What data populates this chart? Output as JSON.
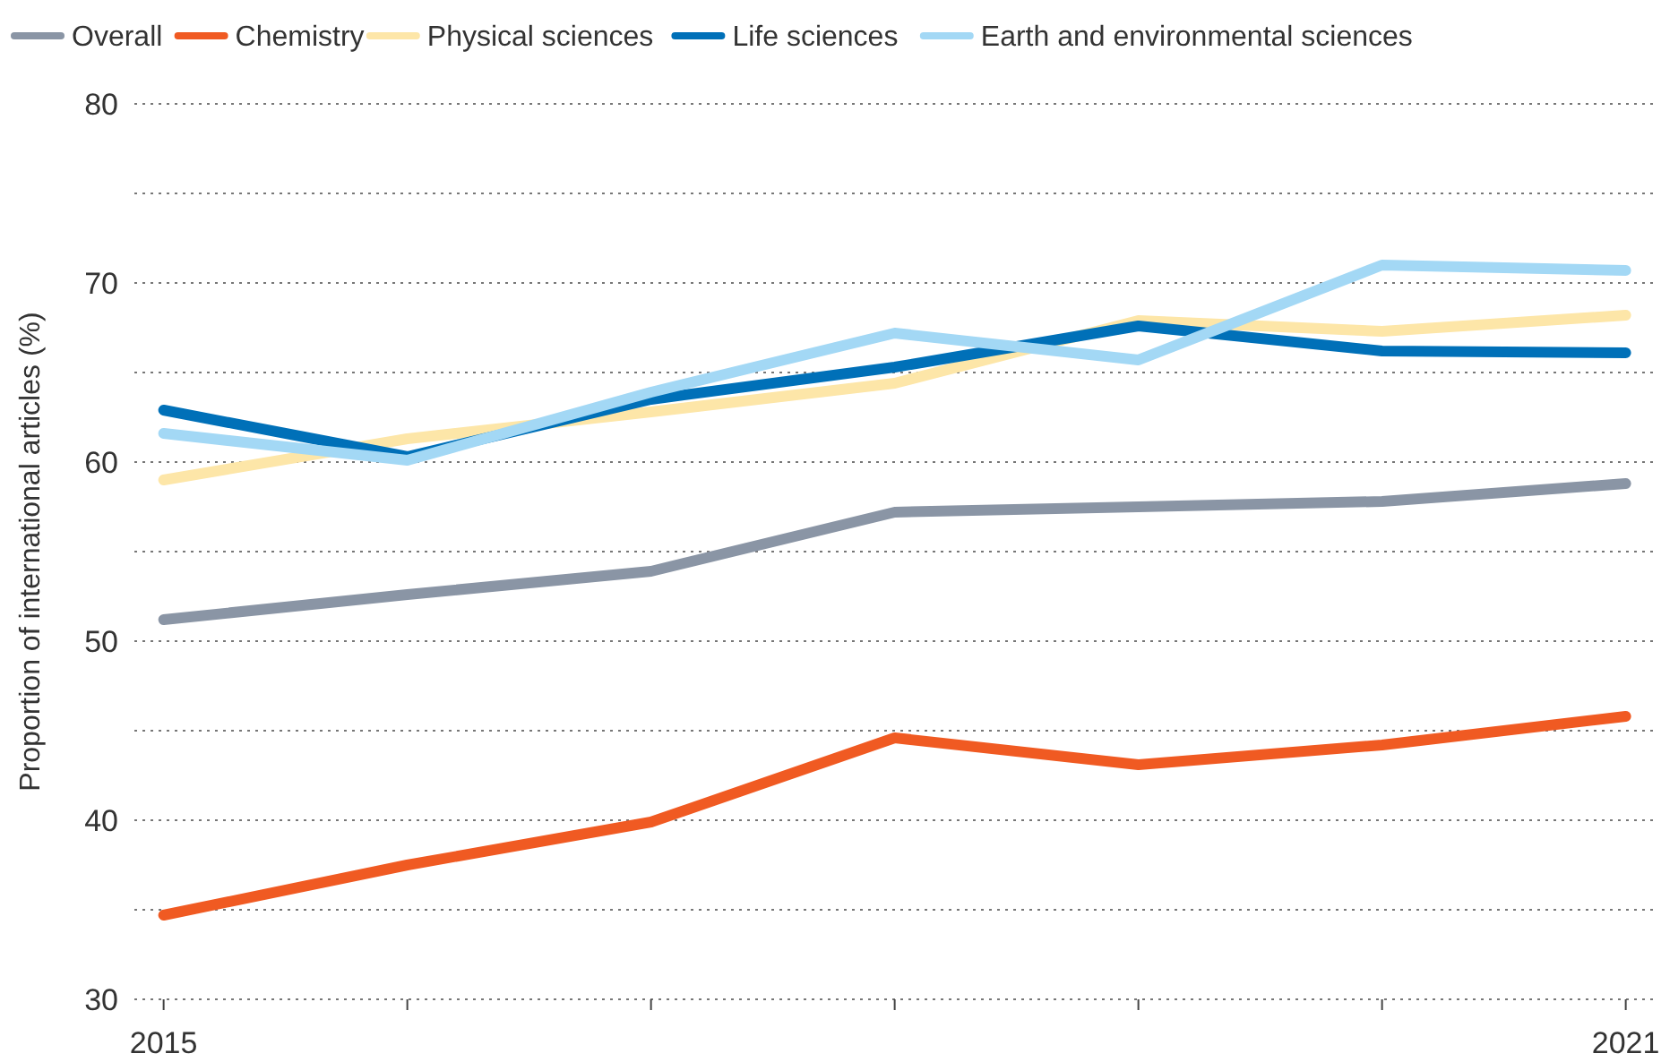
{
  "chart_data": {
    "type": "line",
    "ylabel": "Proportion of international articles (%)",
    "x": [
      2015,
      2016,
      2017,
      2018,
      2019,
      2020,
      2021
    ],
    "xlim": [
      2014.88,
      2021.13
    ],
    "xticks": [
      2015,
      {
        "value": 2016,
        "label": null
      },
      {
        "value": 2017,
        "label": null
      },
      {
        "value": 2018,
        "label": null
      },
      {
        "value": 2019,
        "label": null
      },
      {
        "value": 2020,
        "label": null
      },
      2021
    ],
    "ylim": [
      30,
      80
    ],
    "yticks": [
      30,
      {
        "value": 35,
        "label": null
      },
      40,
      {
        "value": 45,
        "label": null
      },
      50,
      {
        "value": 55,
        "label": null
      },
      60,
      {
        "value": 65,
        "label": null
      },
      70,
      {
        "value": 75,
        "label": null
      },
      80
    ],
    "grid": "y",
    "legend": "top left",
    "line_style": "solid",
    "marker": "none",
    "series": [
      {
        "name": "Overall",
        "color": "#8a95a5",
        "values": [
          51.2,
          52.6,
          53.9,
          57.2,
          57.5,
          57.8,
          58.8
        ]
      },
      {
        "name": "Chemistry",
        "color": "#f05a22",
        "values": [
          34.7,
          37.5,
          39.9,
          44.6,
          43.1,
          44.2,
          45.8
        ]
      },
      {
        "name": "Physical sciences",
        "color": "#fde6a8",
        "values": [
          59.0,
          61.3,
          62.8,
          64.4,
          67.9,
          67.3,
          68.2
        ]
      },
      {
        "name": "Life sciences",
        "color": "#0070b8",
        "values": [
          62.9,
          60.3,
          63.5,
          65.3,
          67.6,
          66.2,
          66.1
        ]
      },
      {
        "name": "Earth and environmental sciences",
        "color": "#a3d8f5",
        "values": [
          61.6,
          60.1,
          63.9,
          67.2,
          65.7,
          71.0,
          70.7
        ]
      }
    ]
  }
}
